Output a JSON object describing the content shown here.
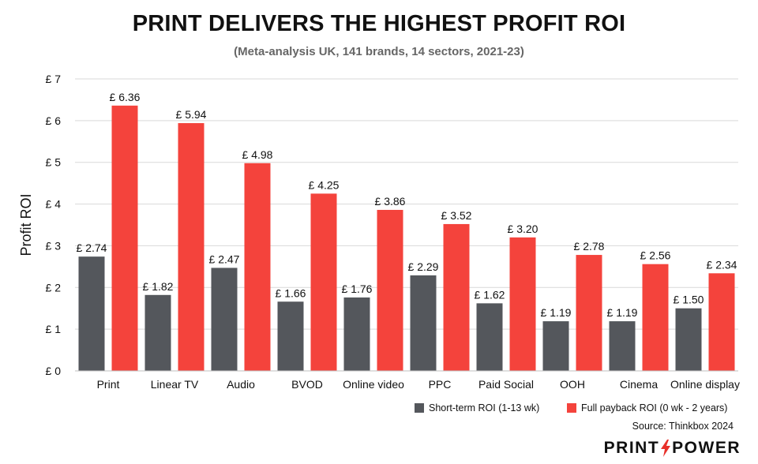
{
  "chart_data": {
    "type": "bar",
    "title": "PRINT DELIVERS THE HIGHEST PROFIT ROI",
    "subtitle": "(Meta-analysis UK, 141 brands, 14 sectors, 2021-23)",
    "ylabel": "Profit ROI",
    "xlabel": "",
    "ylim": [
      0,
      7
    ],
    "yticks": [
      "£ 0",
      "£ 1",
      "£ 2",
      "£ 3",
      "£ 4",
      "£ 5",
      "£ 6",
      "£ 7"
    ],
    "grid": true,
    "legend_position": "bottom-right",
    "categories": [
      "Print",
      "Linear TV",
      "Audio",
      "BVOD",
      "Online video",
      "PPC",
      "Paid Social",
      "OOH",
      "Cinema",
      "Online display"
    ],
    "series": [
      {
        "name": "Short-term ROI (1-13 wk)",
        "color": "#54575c",
        "values": [
          2.74,
          1.82,
          2.47,
          1.66,
          1.76,
          2.29,
          1.62,
          1.19,
          1.19,
          1.5
        ],
        "labels": [
          "£ 2.74",
          "£ 1.82",
          "£ 2.47",
          "£ 1.66",
          "£ 1.76",
          "£ 2.29",
          "£ 1.62",
          "£ 1.19",
          "£ 1.19",
          "£ 1.50"
        ]
      },
      {
        "name": "Full payback ROI (0 wk - 2 years)",
        "color": "#f4433c",
        "values": [
          6.36,
          5.94,
          4.98,
          4.25,
          3.86,
          3.52,
          3.2,
          2.78,
          2.56,
          2.34
        ],
        "labels": [
          "£ 6.36",
          "£ 5.94",
          "£ 4.98",
          "£ 4.25",
          "£ 3.86",
          "£ 3.52",
          "£ 3.20",
          "£ 2.78",
          "£ 2.56",
          "£ 2.34"
        ]
      }
    ],
    "source": "Source: Thinkbox 2024"
  },
  "logo": {
    "left": "PRINT",
    "right": "POWER",
    "icon": "lightning-bolt-icon",
    "accent": "#e8302a"
  }
}
